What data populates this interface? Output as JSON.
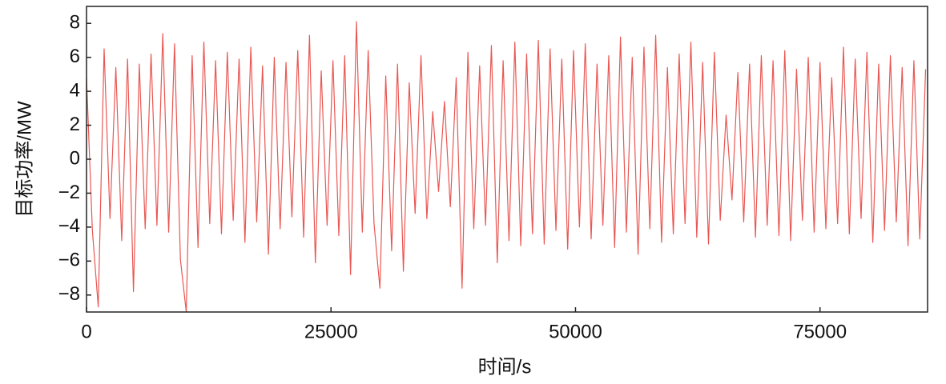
{
  "chart_data": {
    "type": "line",
    "x_label": "时间/s",
    "y_label": "目标功率/MW",
    "color": "#e53935",
    "x": [
      0,
      600,
      1200,
      1800,
      2400,
      3000,
      3600,
      4200,
      4800,
      5400,
      6000,
      6600,
      7200,
      7800,
      8400,
      9000,
      9600,
      10200,
      10800,
      11400,
      12000,
      12600,
      13200,
      13800,
      14400,
      15000,
      15600,
      16200,
      16800,
      17400,
      18000,
      18600,
      19200,
      19800,
      20400,
      21000,
      21600,
      22200,
      22800,
      23400,
      24000,
      24600,
      25200,
      25800,
      26400,
      27000,
      27600,
      28200,
      28800,
      29400,
      30000,
      30600,
      31200,
      31800,
      32400,
      33000,
      33600,
      34200,
      34800,
      35400,
      36000,
      36600,
      37200,
      37800,
      38400,
      39000,
      39600,
      40200,
      40800,
      41400,
      42000,
      42600,
      43200,
      43800,
      44400,
      45000,
      45600,
      46200,
      46800,
      47400,
      48000,
      48600,
      49200,
      49800,
      50400,
      51000,
      51600,
      52200,
      52800,
      53400,
      54000,
      54600,
      55200,
      55800,
      56400,
      57000,
      57600,
      58200,
      58800,
      59400,
      60000,
      60600,
      61200,
      61800,
      62400,
      63000,
      63600,
      64200,
      64800,
      65400,
      66000,
      66600,
      67200,
      67800,
      68400,
      69000,
      69600,
      70200,
      70800,
      71400,
      72000,
      72600,
      73200,
      73800,
      74400,
      75000,
      75600,
      76200,
      76800,
      77400,
      78000,
      78600,
      79200,
      79800,
      80400,
      81000,
      81600,
      82200,
      82800,
      83400,
      84000,
      84600,
      85200,
      85800
    ],
    "values": [
      4.8,
      -4.2,
      -8.7,
      6.5,
      -3.5,
      5.4,
      -4.8,
      5.9,
      -7.8,
      5.6,
      -4.1,
      6.2,
      -3.9,
      7.4,
      -4.3,
      6.8,
      -5.9,
      -9.0,
      6.1,
      -5.2,
      6.9,
      -3.8,
      5.8,
      -4.4,
      6.3,
      -3.6,
      5.9,
      -4.9,
      6.6,
      -3.7,
      5.5,
      -5.6,
      6.0,
      -4.1,
      5.7,
      -3.4,
      6.4,
      -4.6,
      7.3,
      -6.1,
      5.2,
      -3.9,
      5.8,
      -4.5,
      6.1,
      -6.8,
      8.1,
      -4.3,
      6.4,
      -3.8,
      -7.6,
      4.9,
      -5.4,
      5.6,
      -6.6,
      4.5,
      -3.2,
      6.1,
      -3.5,
      2.8,
      -1.9,
      3.4,
      -2.8,
      4.8,
      -7.6,
      6.3,
      -4.1,
      5.5,
      -3.9,
      6.7,
      -6.1,
      5.8,
      -4.8,
      6.9,
      -5.1,
      6.2,
      -4.4,
      7.0,
      -5.0,
      6.5,
      -4.2,
      5.9,
      -5.3,
      6.4,
      -4.0,
      6.8,
      -4.7,
      5.6,
      -3.9,
      6.1,
      -5.2,
      7.2,
      -4.3,
      6.0,
      -5.6,
      6.6,
      -4.1,
      7.3,
      -4.9,
      5.4,
      -4.4,
      6.2,
      -3.8,
      6.9,
      -4.6,
      5.7,
      -5.0,
      6.3,
      -3.6,
      2.6,
      -2.4,
      5.1,
      -3.7,
      5.6,
      -4.6,
      6.1,
      -3.9,
      5.8,
      -4.5,
      6.4,
      -4.8,
      5.3,
      -3.6,
      6.0,
      -4.3,
      5.7,
      -4.1,
      4.8,
      -3.8,
      6.6,
      -4.4,
      5.9,
      -3.5,
      6.3,
      -4.9,
      5.6,
      -4.2,
      6.1,
      -3.7,
      5.4,
      -5.1,
      5.8,
      -4.7,
      5.3
    ],
    "xlim": [
      0,
      86000
    ],
    "ylim": [
      -9,
      9
    ],
    "xticks": [
      0,
      25000,
      50000,
      75000
    ],
    "yticks": [
      {
        "value": -8,
        "label": "−8"
      },
      {
        "value": -6,
        "label": "−6"
      },
      {
        "value": -4,
        "label": "−4"
      },
      {
        "value": -2,
        "label": "−2"
      },
      0,
      2,
      4,
      6,
      8
    ]
  }
}
